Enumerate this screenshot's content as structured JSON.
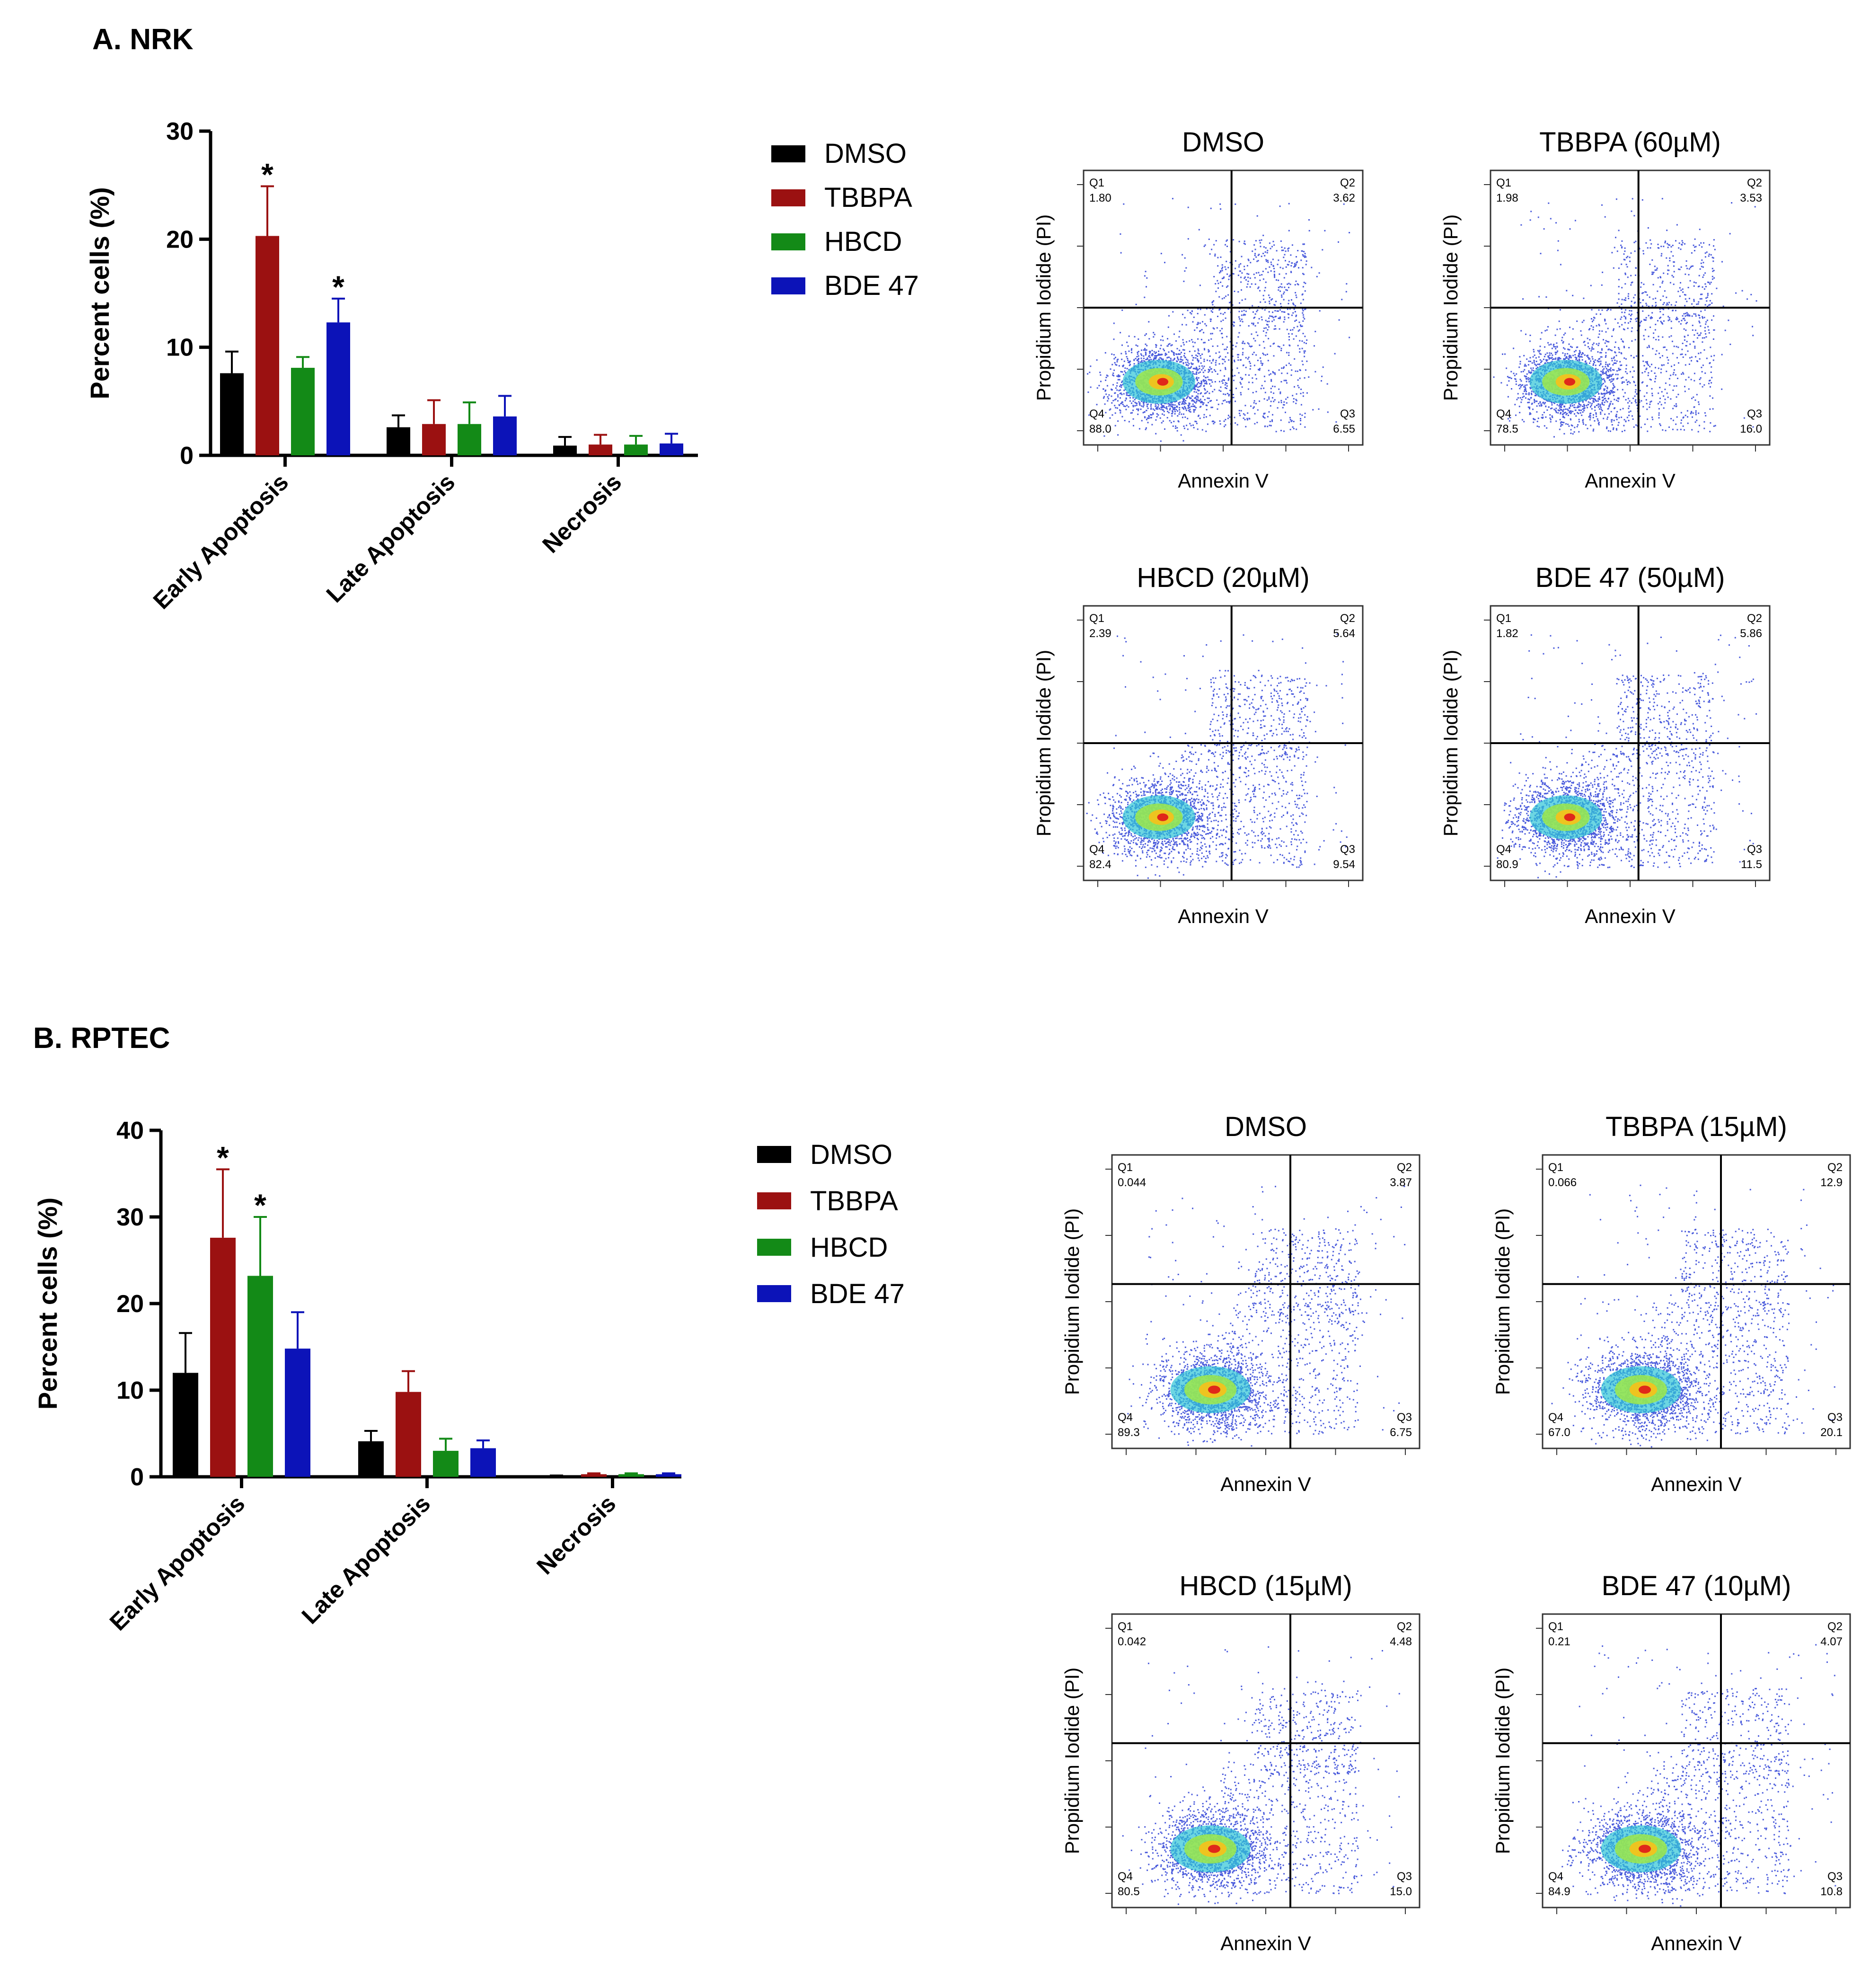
{
  "panels": [
    {
      "label": "A.  NRK",
      "legend": [
        "DMSO",
        "TBBPA",
        "HBCD",
        "BDE 47"
      ],
      "flow_plots": [
        {
          "title": "DMSO",
          "q1": "1.80",
          "q2": "3.62",
          "q3": "6.55",
          "q4": "88.0"
        },
        {
          "title": "TBBPA (60µM)",
          "q1": "1.98",
          "q2": "3.53",
          "q3": "16.0",
          "q4": "78.5"
        },
        {
          "title": "HBCD (20µM)",
          "q1": "2.39",
          "q2": "5.64",
          "q3": "9.54",
          "q4": "82.4"
        },
        {
          "title": "BDE 47 (50µM)",
          "q1": "1.82",
          "q2": "5.86",
          "q3": "11.5",
          "q4": "80.9"
        }
      ],
      "flow_xlabel": "Annexin V",
      "flow_ylabel": "Propidium Iodide (PI)",
      "flow_quadrant_names": [
        "Q1",
        "Q2",
        "Q3",
        "Q4"
      ]
    },
    {
      "label": "B.  RPTEC",
      "legend": [
        "DMSO",
        "TBBPA",
        "HBCD",
        "BDE 47"
      ],
      "flow_plots": [
        {
          "title": "DMSO",
          "q1": "0.044",
          "q2": "3.87",
          "q3": "6.75",
          "q4": "89.3"
        },
        {
          "title": "TBBPA (15µM)",
          "q1": "0.066",
          "q2": "12.9",
          "q3": "20.1",
          "q4": "67.0"
        },
        {
          "title": "HBCD (15µM)",
          "q1": "0.042",
          "q2": "4.48",
          "q3": "15.0",
          "q4": "80.5"
        },
        {
          "title": "BDE 47 (10µM)",
          "q1": "0.21",
          "q2": "4.07",
          "q3": "10.8",
          "q4": "84.9"
        }
      ],
      "flow_xlabel": "Annexin V",
      "flow_ylabel": "Propidium Iodide (PI)",
      "flow_quadrant_names": [
        "Q1",
        "Q2",
        "Q3",
        "Q4"
      ]
    }
  ],
  "series_colors": [
    "#000000",
    "#9b1111",
    "#138a17",
    "#0c13b8"
  ],
  "chart_data": [
    {
      "type": "bar",
      "ylabel": "Percent cells (%)",
      "ylim": [
        0,
        30
      ],
      "yticks": [
        "0",
        "10",
        "20",
        "30"
      ],
      "categories": [
        "Early Apoptosis",
        "Late Apoptosis",
        "Necrosis"
      ],
      "series": [
        {
          "name": "DMSO",
          "values": [
            7.6,
            2.6,
            0.9
          ],
          "errors": [
            2.0,
            1.1,
            0.8
          ]
        },
        {
          "name": "TBBPA",
          "values": [
            20.3,
            2.9,
            1.0
          ],
          "errors": [
            4.6,
            2.2,
            0.9
          ]
        },
        {
          "name": "HBCD",
          "values": [
            8.1,
            2.9,
            1.0
          ],
          "errors": [
            1.0,
            2.0,
            0.8
          ]
        },
        {
          "name": "BDE 47",
          "values": [
            12.3,
            3.6,
            1.1
          ],
          "errors": [
            2.2,
            1.9,
            0.9
          ]
        }
      ],
      "significance": [
        {
          "category": 0,
          "series": 1,
          "mark": "*"
        },
        {
          "category": 0,
          "series": 3,
          "mark": "*"
        }
      ]
    },
    {
      "type": "bar",
      "ylabel": "Percent cells (%)",
      "ylim": [
        0,
        40
      ],
      "yticks": [
        "0",
        "10",
        "20",
        "30",
        "40"
      ],
      "categories": [
        "Early Apoptosis",
        "Late Apoptosis",
        "Necrosis"
      ],
      "series": [
        {
          "name": "DMSO",
          "values": [
            12.0,
            4.1,
            0.1
          ],
          "errors": [
            4.6,
            1.2,
            0.05
          ]
        },
        {
          "name": "TBBPA",
          "values": [
            27.6,
            9.8,
            0.3
          ],
          "errors": [
            7.9,
            2.4,
            0.1
          ]
        },
        {
          "name": "HBCD",
          "values": [
            23.2,
            3.0,
            0.3
          ],
          "errors": [
            6.8,
            1.4,
            0.1
          ]
        },
        {
          "name": "BDE 47",
          "values": [
            14.8,
            3.3,
            0.3
          ],
          "errors": [
            4.2,
            0.9,
            0.1
          ]
        }
      ],
      "significance": [
        {
          "category": 0,
          "series": 1,
          "mark": "*"
        },
        {
          "category": 0,
          "series": 2,
          "mark": "*"
        }
      ]
    }
  ]
}
